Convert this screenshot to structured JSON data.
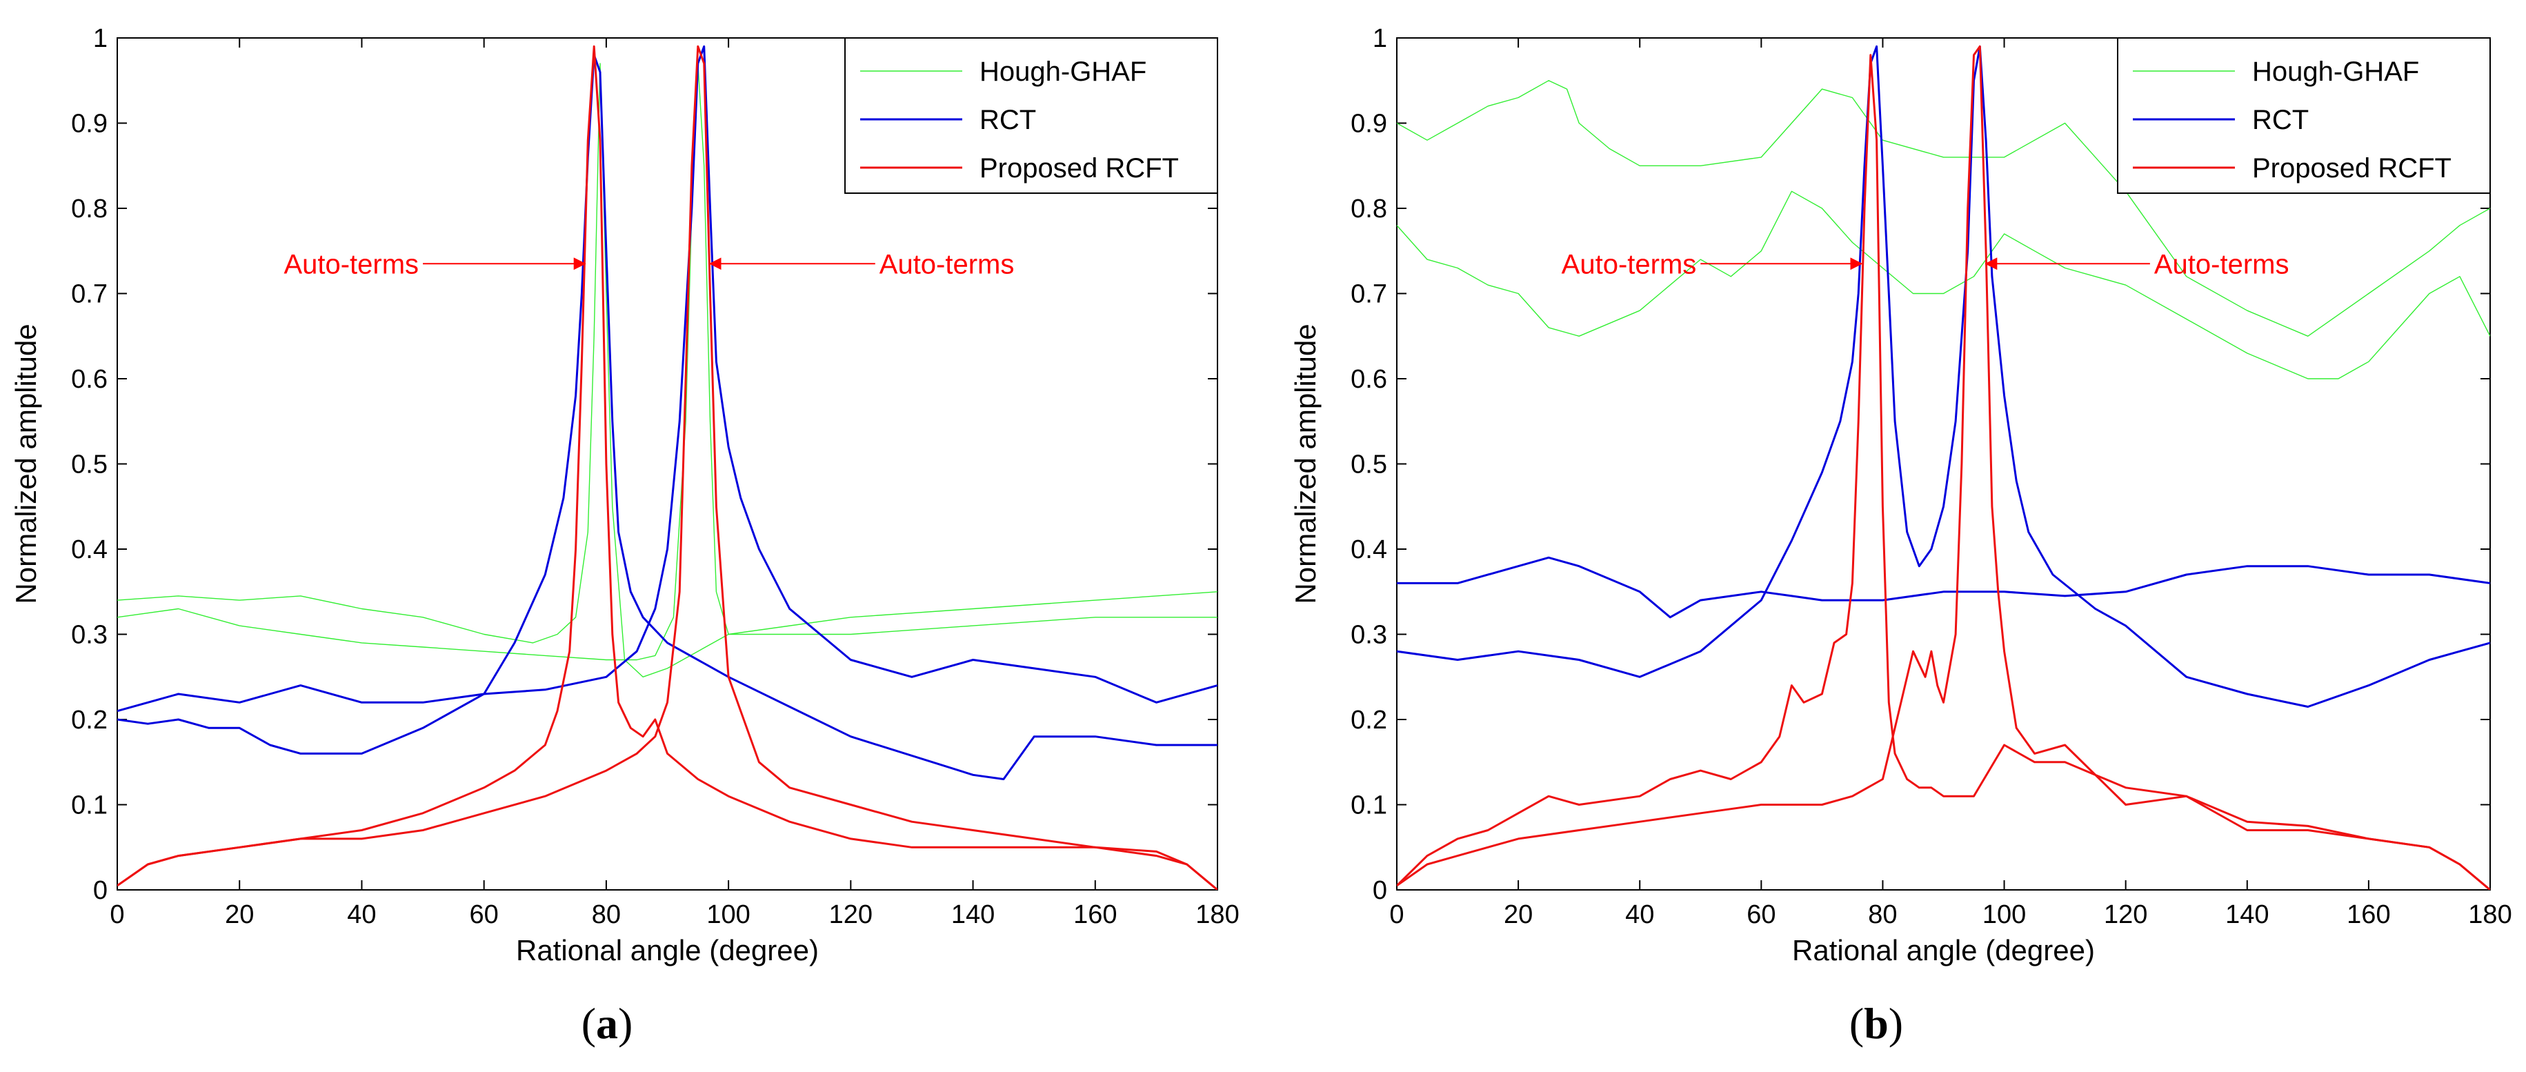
{
  "chart_data": [
    {
      "panel": "(a)",
      "panel_letter": "a",
      "type": "line",
      "xlabel": "Rational angle (degree)",
      "ylabel": "Normalized amplitude",
      "xlim": [
        0,
        180
      ],
      "ylim": [
        0,
        1
      ],
      "xticks": [
        0,
        20,
        40,
        60,
        80,
        100,
        120,
        140,
        160,
        180
      ],
      "yticks": [
        0,
        0.1,
        0.2,
        0.3,
        0.4,
        0.5,
        0.6,
        0.7,
        0.8,
        0.9,
        1
      ],
      "ytick_labels": [
        "0",
        "0.1",
        "0.2",
        "0.3",
        "0.4",
        "0.5",
        "0.6",
        "0.7",
        "0.8",
        "0.9",
        "1"
      ],
      "legend": [
        "Hough-GHAF",
        "RCT",
        "Proposed RCFT"
      ],
      "annotations": [
        {
          "text": "Auto-terms",
          "side": "left",
          "text_x": 33,
          "arrow_from_x": 50,
          "arrow_to_x": 76.5,
          "y": 0.735
        },
        {
          "text": "Auto-terms",
          "side": "right",
          "text_x": 118,
          "arrow_from_x": 124,
          "arrow_to_x": 97,
          "y": 0.735
        }
      ],
      "series": [
        {
          "name": "Hough-GHAF",
          "color": "#33ee33",
          "width": 1.4,
          "x": [
            0,
            10,
            20,
            30,
            40,
            50,
            60,
            68,
            72,
            75,
            77,
            78,
            79,
            80,
            81,
            83,
            86,
            90,
            100,
            120,
            140,
            160,
            180
          ],
          "y": [
            0.34,
            0.345,
            0.34,
            0.345,
            0.33,
            0.32,
            0.3,
            0.29,
            0.3,
            0.32,
            0.42,
            0.65,
            0.97,
            0.7,
            0.45,
            0.27,
            0.25,
            0.26,
            0.3,
            0.32,
            0.33,
            0.34,
            0.35
          ]
        },
        {
          "name": "Hough-GHAF",
          "color": "#33ee33",
          "width": 1.4,
          "x": [
            0,
            10,
            20,
            30,
            40,
            50,
            60,
            70,
            80,
            85,
            88,
            91,
            93,
            94,
            95,
            96,
            97,
            98,
            100,
            105,
            120,
            140,
            160,
            180
          ],
          "y": [
            0.32,
            0.33,
            0.31,
            0.3,
            0.29,
            0.285,
            0.28,
            0.275,
            0.27,
            0.27,
            0.275,
            0.32,
            0.55,
            0.8,
            0.97,
            0.85,
            0.55,
            0.35,
            0.3,
            0.3,
            0.3,
            0.31,
            0.32,
            0.32
          ]
        },
        {
          "name": "RCT",
          "color": "#0000dd",
          "width": 3,
          "x": [
            0,
            5,
            10,
            15,
            20,
            25,
            30,
            40,
            50,
            60,
            65,
            70,
            73,
            75,
            76,
            77,
            78,
            79,
            80,
            81,
            82,
            84,
            86,
            90,
            100,
            120,
            140,
            145,
            150,
            160,
            170,
            180
          ],
          "y": [
            0.2,
            0.195,
            0.2,
            0.19,
            0.19,
            0.17,
            0.16,
            0.16,
            0.19,
            0.23,
            0.29,
            0.37,
            0.46,
            0.58,
            0.7,
            0.86,
            0.98,
            0.96,
            0.75,
            0.55,
            0.42,
            0.35,
            0.32,
            0.29,
            0.25,
            0.18,
            0.135,
            0.13,
            0.18,
            0.18,
            0.17,
            0.17
          ]
        },
        {
          "name": "RCT",
          "color": "#0000dd",
          "width": 3,
          "x": [
            0,
            10,
            20,
            30,
            40,
            50,
            60,
            70,
            80,
            85,
            88,
            90,
            92,
            94,
            95,
            96,
            97,
            98,
            100,
            102,
            105,
            110,
            120,
            130,
            140,
            150,
            160,
            170,
            180
          ],
          "y": [
            0.21,
            0.23,
            0.22,
            0.24,
            0.22,
            0.22,
            0.23,
            0.235,
            0.25,
            0.28,
            0.33,
            0.4,
            0.55,
            0.8,
            0.97,
            0.99,
            0.8,
            0.62,
            0.52,
            0.46,
            0.4,
            0.33,
            0.27,
            0.25,
            0.27,
            0.26,
            0.25,
            0.22,
            0.24
          ]
        },
        {
          "name": "Proposed RCFT",
          "color": "#ee1111",
          "width": 3,
          "x": [
            0,
            5,
            10,
            20,
            30,
            40,
            50,
            60,
            65,
            70,
            72,
            74,
            75,
            76,
            77,
            78,
            79,
            80,
            81,
            82,
            84,
            86,
            88,
            90,
            95,
            100,
            110,
            120,
            130,
            140,
            150,
            160,
            170,
            175,
            180
          ],
          "y": [
            0.005,
            0.03,
            0.04,
            0.05,
            0.06,
            0.07,
            0.09,
            0.12,
            0.14,
            0.17,
            0.21,
            0.28,
            0.4,
            0.62,
            0.88,
            0.99,
            0.88,
            0.5,
            0.3,
            0.22,
            0.19,
            0.18,
            0.2,
            0.16,
            0.13,
            0.11,
            0.08,
            0.06,
            0.05,
            0.05,
            0.05,
            0.05,
            0.045,
            0.03,
            0.0
          ]
        },
        {
          "name": "Proposed RCFT",
          "color": "#ee1111",
          "width": 3,
          "x": [
            0,
            5,
            10,
            20,
            30,
            40,
            50,
            60,
            70,
            80,
            85,
            88,
            90,
            92,
            93,
            94,
            95,
            96,
            97,
            98,
            100,
            102,
            105,
            110,
            120,
            130,
            140,
            150,
            160,
            170,
            175,
            180
          ],
          "y": [
            0.005,
            0.03,
            0.04,
            0.05,
            0.06,
            0.06,
            0.07,
            0.09,
            0.11,
            0.14,
            0.16,
            0.18,
            0.22,
            0.35,
            0.6,
            0.85,
            0.99,
            0.97,
            0.7,
            0.45,
            0.25,
            0.21,
            0.15,
            0.12,
            0.1,
            0.08,
            0.07,
            0.06,
            0.05,
            0.04,
            0.03,
            0.0
          ]
        }
      ]
    },
    {
      "panel": "(b)",
      "panel_letter": "b",
      "type": "line",
      "xlabel": "Rational angle (degree)",
      "ylabel": "Normalized amplitude",
      "xlim": [
        0,
        180
      ],
      "ylim": [
        0,
        1
      ],
      "xticks": [
        0,
        20,
        40,
        60,
        80,
        100,
        120,
        140,
        160,
        180
      ],
      "yticks": [
        0,
        0.1,
        0.2,
        0.3,
        0.4,
        0.5,
        0.6,
        0.7,
        0.8,
        0.9,
        1
      ],
      "ytick_labels": [
        "0",
        "0.1",
        "0.2",
        "0.3",
        "0.4",
        "0.5",
        "0.6",
        "0.7",
        "0.8",
        "0.9",
        "1"
      ],
      "legend": [
        "Hough-GHAF",
        "RCT",
        "Proposed RCFT"
      ],
      "annotations": [
        {
          "text": "Auto-terms",
          "side": "left",
          "text_x": 33,
          "arrow_from_x": 50,
          "arrow_to_x": 76.5,
          "y": 0.735
        },
        {
          "text": "Auto-terms",
          "side": "right",
          "text_x": 118,
          "arrow_from_x": 124,
          "arrow_to_x": 97,
          "y": 0.735
        }
      ],
      "series": [
        {
          "name": "Hough-GHAF",
          "color": "#33ee33",
          "width": 1.4,
          "x": [
            0,
            5,
            10,
            15,
            20,
            25,
            28,
            30,
            35,
            40,
            50,
            60,
            70,
            75,
            80,
            90,
            100,
            110,
            120,
            130,
            140,
            150,
            160,
            170,
            175,
            180
          ],
          "y": [
            0.9,
            0.88,
            0.9,
            0.92,
            0.93,
            0.95,
            0.94,
            0.9,
            0.87,
            0.85,
            0.85,
            0.86,
            0.94,
            0.93,
            0.88,
            0.86,
            0.86,
            0.9,
            0.82,
            0.72,
            0.68,
            0.65,
            0.7,
            0.75,
            0.78,
            0.8
          ]
        },
        {
          "name": "Hough-GHAF",
          "color": "#33ee33",
          "width": 1.4,
          "x": [
            0,
            5,
            10,
            15,
            20,
            25,
            30,
            40,
            50,
            55,
            60,
            65,
            70,
            75,
            80,
            85,
            90,
            95,
            100,
            105,
            110,
            120,
            130,
            140,
            150,
            155,
            160,
            165,
            170,
            175,
            180
          ],
          "y": [
            0.78,
            0.74,
            0.73,
            0.71,
            0.7,
            0.66,
            0.65,
            0.68,
            0.74,
            0.72,
            0.75,
            0.82,
            0.8,
            0.76,
            0.73,
            0.7,
            0.7,
            0.72,
            0.77,
            0.75,
            0.73,
            0.71,
            0.67,
            0.63,
            0.6,
            0.6,
            0.62,
            0.66,
            0.7,
            0.72,
            0.65
          ]
        },
        {
          "name": "RCT",
          "color": "#0000dd",
          "width": 3,
          "x": [
            0,
            10,
            20,
            25,
            30,
            40,
            45,
            50,
            60,
            65,
            70,
            75,
            80,
            90,
            100,
            110,
            120,
            130,
            140,
            150,
            160,
            170,
            180
          ],
          "y": [
            0.36,
            0.36,
            0.38,
            0.39,
            0.38,
            0.35,
            0.32,
            0.34,
            0.35,
            0.345,
            0.34,
            0.34,
            0.34,
            0.35,
            0.35,
            0.345,
            0.35,
            0.37,
            0.38,
            0.38,
            0.37,
            0.37,
            0.36
          ]
        },
        {
          "name": "RCT",
          "color": "#0000dd",
          "width": 3,
          "x": [
            0,
            10,
            20,
            30,
            40,
            50,
            60,
            65,
            70,
            73,
            75,
            76,
            77,
            78,
            79,
            80,
            81,
            82,
            84,
            86,
            88,
            90,
            92,
            94,
            95,
            96,
            97,
            98,
            100,
            102,
            104,
            108,
            115,
            120,
            130,
            140,
            150,
            160,
            170,
            180
          ],
          "y": [
            0.28,
            0.27,
            0.28,
            0.27,
            0.25,
            0.28,
            0.34,
            0.41,
            0.49,
            0.55,
            0.62,
            0.7,
            0.85,
            0.97,
            0.99,
            0.85,
            0.7,
            0.55,
            0.42,
            0.38,
            0.4,
            0.45,
            0.55,
            0.75,
            0.95,
            0.99,
            0.88,
            0.72,
            0.58,
            0.48,
            0.42,
            0.37,
            0.33,
            0.31,
            0.25,
            0.23,
            0.215,
            0.24,
            0.27,
            0.29
          ]
        },
        {
          "name": "Proposed RCFT",
          "color": "#ee1111",
          "width": 3,
          "x": [
            0,
            5,
            10,
            15,
            20,
            25,
            30,
            40,
            45,
            50,
            55,
            60,
            63,
            65,
            67,
            70,
            72,
            74,
            75,
            76,
            77,
            78,
            79,
            80,
            81,
            82,
            84,
            86,
            88,
            90,
            95,
            100,
            105,
            110,
            120,
            130,
            140,
            150,
            160,
            170,
            175,
            180
          ],
          "y": [
            0.005,
            0.04,
            0.06,
            0.07,
            0.09,
            0.11,
            0.1,
            0.11,
            0.13,
            0.14,
            0.13,
            0.15,
            0.18,
            0.24,
            0.22,
            0.23,
            0.29,
            0.3,
            0.36,
            0.55,
            0.8,
            0.98,
            0.88,
            0.45,
            0.22,
            0.16,
            0.13,
            0.12,
            0.12,
            0.11,
            0.11,
            0.17,
            0.15,
            0.15,
            0.12,
            0.11,
            0.08,
            0.075,
            0.06,
            0.05,
            0.03,
            0.0
          ]
        },
        {
          "name": "Proposed RCFT",
          "color": "#ee1111",
          "width": 3,
          "x": [
            0,
            5,
            10,
            20,
            30,
            40,
            50,
            60,
            70,
            75,
            80,
            83,
            85,
            87,
            88,
            89,
            90,
            92,
            93,
            94,
            95,
            96,
            97,
            98,
            99,
            100,
            102,
            105,
            110,
            120,
            130,
            140,
            150,
            160,
            170,
            175,
            180
          ],
          "y": [
            0.005,
            0.03,
            0.04,
            0.06,
            0.07,
            0.08,
            0.09,
            0.1,
            0.1,
            0.11,
            0.13,
            0.22,
            0.28,
            0.25,
            0.28,
            0.24,
            0.22,
            0.3,
            0.5,
            0.8,
            0.98,
            0.99,
            0.75,
            0.45,
            0.35,
            0.28,
            0.19,
            0.16,
            0.17,
            0.1,
            0.11,
            0.07,
            0.07,
            0.06,
            0.05,
            0.03,
            0.0
          ]
        }
      ]
    }
  ]
}
